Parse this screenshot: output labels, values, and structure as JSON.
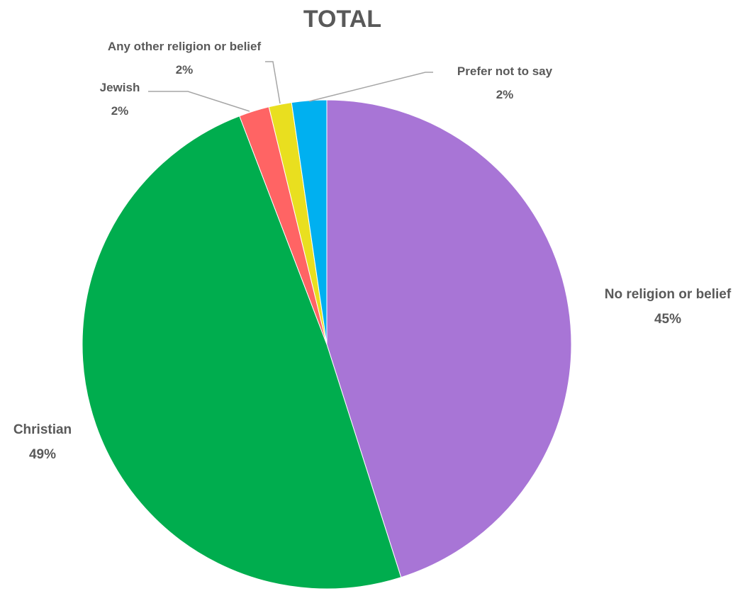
{
  "chart_data": {
    "type": "pie",
    "title": "TOTAL",
    "start_angle": "12 o'clock",
    "direction": "clockwise",
    "slices": [
      {
        "label": "No religion or belief",
        "value": 45,
        "value_label": "45%",
        "color": "#A875D6"
      },
      {
        "label": "Christian",
        "value": 49,
        "value_label": "49%",
        "color": "#00AD4E"
      },
      {
        "label": "Jewish",
        "value": 2,
        "value_label": "2%",
        "color": "#FF6464"
      },
      {
        "label": "Any other religion or belief",
        "value": 1.5,
        "value_label": "2%",
        "color": "#E9DF1F"
      },
      {
        "label": "Prefer not to say",
        "value": 2.3,
        "value_label": "2%",
        "color": "#00B0F0"
      }
    ]
  }
}
